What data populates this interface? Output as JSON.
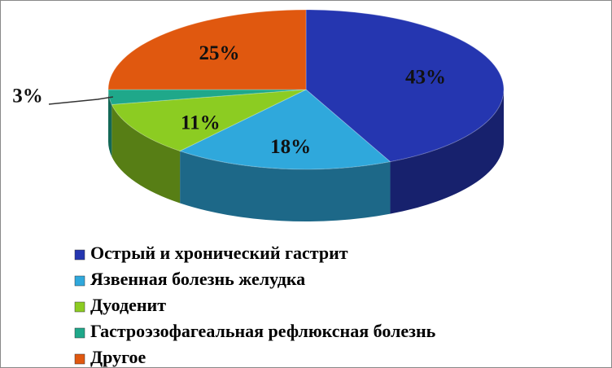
{
  "chart_data": {
    "type": "pie3d",
    "categories": [
      "Острый и хронический гастрит",
      "Язвенная болезнь желудка",
      "Дуоденит",
      "Гастроэзофагеальная  рефлюксная болезнь",
      "Другое"
    ],
    "values": [
      43,
      18,
      11,
      3,
      25
    ],
    "value_labels": [
      "43%",
      "18%",
      "11%",
      "3%",
      "25%"
    ],
    "colors": [
      "#2536b0",
      "#2fa8dc",
      "#8ccc22",
      "#1fa88a",
      "#e0580f"
    ],
    "legend": "bottom"
  }
}
